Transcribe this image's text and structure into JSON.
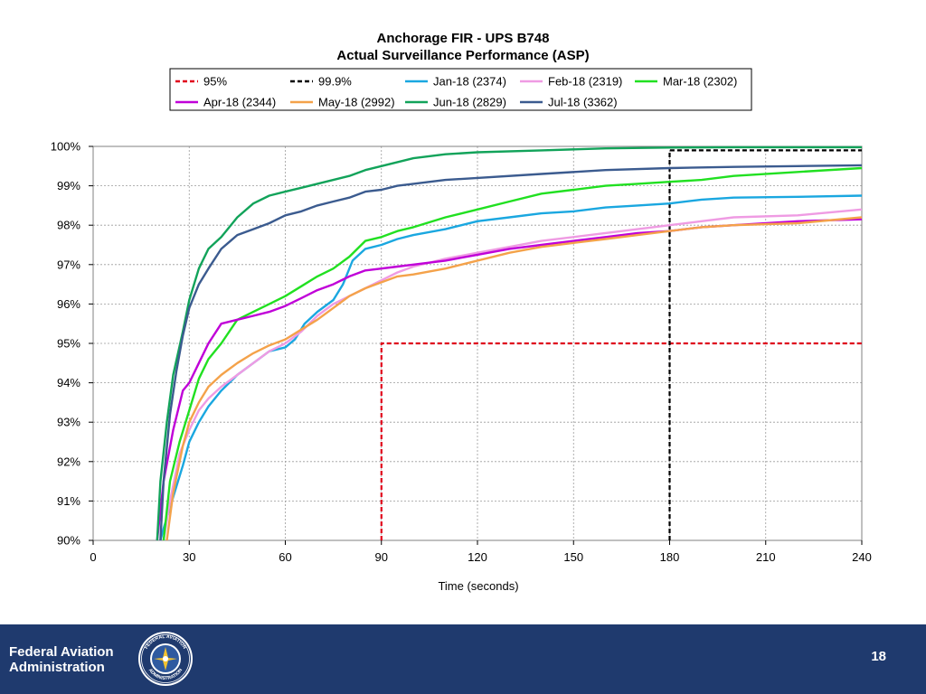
{
  "slide": {
    "org_line1": "Federal Aviation",
    "org_line2": "Administration",
    "page_number": "18",
    "seal_text_top": "FEDERAL AVIATION",
    "seal_text_bottom": "ADMINISTRATION"
  },
  "colors": {
    "footer_bg": "#1f3a6e",
    "grid": "#9a9a9a"
  },
  "chart_data": {
    "type": "line",
    "title": [
      "Anchorage  FIR  - UPS B748",
      "Actual  Surveillance  Performance  (ASP)"
    ],
    "xlabel": "Time (seconds)",
    "ylabel": "",
    "xlim": [
      0,
      240
    ],
    "ylim": [
      90,
      100
    ],
    "xticks": [
      0,
      30,
      60,
      90,
      120,
      150,
      180,
      210,
      240
    ],
    "xtick_labels": [
      "0",
      "30",
      "60",
      "90",
      "120",
      "150",
      "180",
      "210",
      "240"
    ],
    "yticks": [
      90,
      91,
      92,
      93,
      94,
      95,
      96,
      97,
      98,
      99,
      100
    ],
    "ytick_labels": [
      "90%",
      "91%",
      "92%",
      "93%",
      "94%",
      "95%",
      "96%",
      "97%",
      "98%",
      "99%",
      "100%"
    ],
    "grid": true,
    "legend": "top",
    "series": [
      {
        "name": "95%",
        "color": "#e0001b",
        "dashed": true,
        "step": true,
        "points": [
          [
            90,
            90
          ],
          [
            90,
            95
          ],
          [
            240,
            95
          ]
        ]
      },
      {
        "name": "99.9%",
        "color": "#000000",
        "dashed": true,
        "step": true,
        "points": [
          [
            180,
            90
          ],
          [
            180,
            99.9
          ],
          [
            240,
            99.9
          ]
        ]
      },
      {
        "name": "Jan-18 (2374)",
        "color": "#1aa7e0",
        "points": [
          [
            21,
            90
          ],
          [
            22,
            90.3
          ],
          [
            25,
            91.1
          ],
          [
            28,
            91.9
          ],
          [
            30,
            92.5
          ],
          [
            33,
            93.0
          ],
          [
            36,
            93.4
          ],
          [
            40,
            93.8
          ],
          [
            45,
            94.2
          ],
          [
            50,
            94.5
          ],
          [
            55,
            94.8
          ],
          [
            60,
            94.9
          ],
          [
            63,
            95.1
          ],
          [
            66,
            95.5
          ],
          [
            70,
            95.8
          ],
          [
            75,
            96.1
          ],
          [
            78,
            96.5
          ],
          [
            81,
            97.1
          ],
          [
            85,
            97.4
          ],
          [
            90,
            97.5
          ],
          [
            95,
            97.65
          ],
          [
            100,
            97.75
          ],
          [
            110,
            97.9
          ],
          [
            120,
            98.1
          ],
          [
            130,
            98.2
          ],
          [
            140,
            98.3
          ],
          [
            150,
            98.35
          ],
          [
            160,
            98.45
          ],
          [
            170,
            98.5
          ],
          [
            180,
            98.55
          ],
          [
            190,
            98.65
          ],
          [
            200,
            98.7
          ],
          [
            220,
            98.72
          ],
          [
            240,
            98.75
          ]
        ]
      },
      {
        "name": "Feb-18 (2319)",
        "color": "#ef9be3",
        "points": [
          [
            22,
            90
          ],
          [
            24,
            91.0
          ],
          [
            27,
            92.2
          ],
          [
            30,
            92.8
          ],
          [
            33,
            93.3
          ],
          [
            36,
            93.6
          ],
          [
            40,
            93.9
          ],
          [
            45,
            94.2
          ],
          [
            50,
            94.5
          ],
          [
            55,
            94.8
          ],
          [
            60,
            95.0
          ],
          [
            65,
            95.3
          ],
          [
            70,
            95.7
          ],
          [
            75,
            96.0
          ],
          [
            80,
            96.2
          ],
          [
            85,
            96.4
          ],
          [
            90,
            96.6
          ],
          [
            95,
            96.8
          ],
          [
            100,
            96.95
          ],
          [
            110,
            97.15
          ],
          [
            120,
            97.3
          ],
          [
            130,
            97.45
          ],
          [
            140,
            97.6
          ],
          [
            150,
            97.7
          ],
          [
            160,
            97.8
          ],
          [
            170,
            97.9
          ],
          [
            180,
            98.0
          ],
          [
            190,
            98.1
          ],
          [
            200,
            98.2
          ],
          [
            220,
            98.25
          ],
          [
            240,
            98.4
          ]
        ]
      },
      {
        "name": "Mar-18 (2302)",
        "color": "#21e021",
        "points": [
          [
            22,
            90
          ],
          [
            24,
            91.5
          ],
          [
            27,
            92.5
          ],
          [
            30,
            93.3
          ],
          [
            33,
            94.1
          ],
          [
            36,
            94.6
          ],
          [
            40,
            95.0
          ],
          [
            45,
            95.6
          ],
          [
            50,
            95.8
          ],
          [
            55,
            96.0
          ],
          [
            60,
            96.2
          ],
          [
            65,
            96.45
          ],
          [
            70,
            96.7
          ],
          [
            75,
            96.9
          ],
          [
            80,
            97.2
          ],
          [
            85,
            97.6
          ],
          [
            90,
            97.7
          ],
          [
            95,
            97.85
          ],
          [
            100,
            97.95
          ],
          [
            110,
            98.2
          ],
          [
            120,
            98.4
          ],
          [
            130,
            98.6
          ],
          [
            140,
            98.8
          ],
          [
            150,
            98.9
          ],
          [
            160,
            99.0
          ],
          [
            170,
            99.05
          ],
          [
            180,
            99.1
          ],
          [
            190,
            99.15
          ],
          [
            200,
            99.25
          ],
          [
            220,
            99.35
          ],
          [
            240,
            99.45
          ]
        ]
      },
      {
        "name": "Apr-18 (2344)",
        "color": "#c000d8",
        "points": [
          [
            20,
            90
          ],
          [
            22,
            91.5
          ],
          [
            25,
            92.8
          ],
          [
            28,
            93.8
          ],
          [
            30,
            94.0
          ],
          [
            33,
            94.5
          ],
          [
            36,
            95.0
          ],
          [
            40,
            95.5
          ],
          [
            45,
            95.6
          ],
          [
            50,
            95.7
          ],
          [
            55,
            95.8
          ],
          [
            60,
            95.95
          ],
          [
            65,
            96.15
          ],
          [
            70,
            96.35
          ],
          [
            75,
            96.5
          ],
          [
            80,
            96.7
          ],
          [
            85,
            96.85
          ],
          [
            90,
            96.9
          ],
          [
            95,
            96.95
          ],
          [
            100,
            97.0
          ],
          [
            110,
            97.1
          ],
          [
            120,
            97.25
          ],
          [
            130,
            97.4
          ],
          [
            140,
            97.5
          ],
          [
            150,
            97.6
          ],
          [
            160,
            97.7
          ],
          [
            170,
            97.8
          ],
          [
            180,
            97.85
          ],
          [
            190,
            97.95
          ],
          [
            200,
            98.0
          ],
          [
            220,
            98.1
          ],
          [
            240,
            98.15
          ]
        ]
      },
      {
        "name": "May-18 (2992)",
        "color": "#f4a24a",
        "points": [
          [
            23,
            90
          ],
          [
            25,
            91.2
          ],
          [
            28,
            92.4
          ],
          [
            30,
            93.0
          ],
          [
            33,
            93.5
          ],
          [
            36,
            93.9
          ],
          [
            40,
            94.2
          ],
          [
            45,
            94.5
          ],
          [
            50,
            94.75
          ],
          [
            55,
            94.95
          ],
          [
            60,
            95.1
          ],
          [
            65,
            95.35
          ],
          [
            70,
            95.6
          ],
          [
            75,
            95.9
          ],
          [
            80,
            96.2
          ],
          [
            85,
            96.4
          ],
          [
            90,
            96.55
          ],
          [
            95,
            96.7
          ],
          [
            100,
            96.75
          ],
          [
            110,
            96.9
          ],
          [
            120,
            97.1
          ],
          [
            130,
            97.3
          ],
          [
            140,
            97.45
          ],
          [
            150,
            97.55
          ],
          [
            160,
            97.65
          ],
          [
            170,
            97.75
          ],
          [
            180,
            97.85
          ],
          [
            190,
            97.95
          ],
          [
            200,
            98.0
          ],
          [
            220,
            98.05
          ],
          [
            240,
            98.2
          ]
        ]
      },
      {
        "name": "Jun-18 (2829)",
        "color": "#12a35a",
        "points": [
          [
            20,
            90
          ],
          [
            21,
            91.5
          ],
          [
            23,
            93.0
          ],
          [
            25,
            94.2
          ],
          [
            28,
            95.3
          ],
          [
            30,
            96.1
          ],
          [
            33,
            96.9
          ],
          [
            36,
            97.4
          ],
          [
            40,
            97.7
          ],
          [
            45,
            98.2
          ],
          [
            50,
            98.55
          ],
          [
            55,
            98.75
          ],
          [
            60,
            98.85
          ],
          [
            65,
            98.95
          ],
          [
            70,
            99.05
          ],
          [
            75,
            99.15
          ],
          [
            80,
            99.25
          ],
          [
            85,
            99.4
          ],
          [
            90,
            99.5
          ],
          [
            95,
            99.6
          ],
          [
            100,
            99.7
          ],
          [
            110,
            99.8
          ],
          [
            120,
            99.85
          ],
          [
            140,
            99.9
          ],
          [
            160,
            99.95
          ],
          [
            180,
            99.97
          ],
          [
            200,
            99.98
          ],
          [
            240,
            99.98
          ]
        ]
      },
      {
        "name": "Jul-18 (3362)",
        "color": "#3b5b8f",
        "points": [
          [
            21,
            90
          ],
          [
            22,
            91.5
          ],
          [
            24,
            93.2
          ],
          [
            26,
            94.3
          ],
          [
            28,
            95.2
          ],
          [
            30,
            95.9
          ],
          [
            33,
            96.5
          ],
          [
            36,
            96.9
          ],
          [
            40,
            97.4
          ],
          [
            45,
            97.75
          ],
          [
            50,
            97.9
          ],
          [
            55,
            98.05
          ],
          [
            60,
            98.25
          ],
          [
            65,
            98.35
          ],
          [
            70,
            98.5
          ],
          [
            75,
            98.6
          ],
          [
            80,
            98.7
          ],
          [
            85,
            98.85
          ],
          [
            90,
            98.9
          ],
          [
            95,
            99.0
          ],
          [
            100,
            99.05
          ],
          [
            110,
            99.15
          ],
          [
            120,
            99.2
          ],
          [
            140,
            99.3
          ],
          [
            160,
            99.4
          ],
          [
            180,
            99.45
          ],
          [
            200,
            99.48
          ],
          [
            220,
            99.5
          ],
          [
            240,
            99.52
          ]
        ]
      }
    ]
  }
}
